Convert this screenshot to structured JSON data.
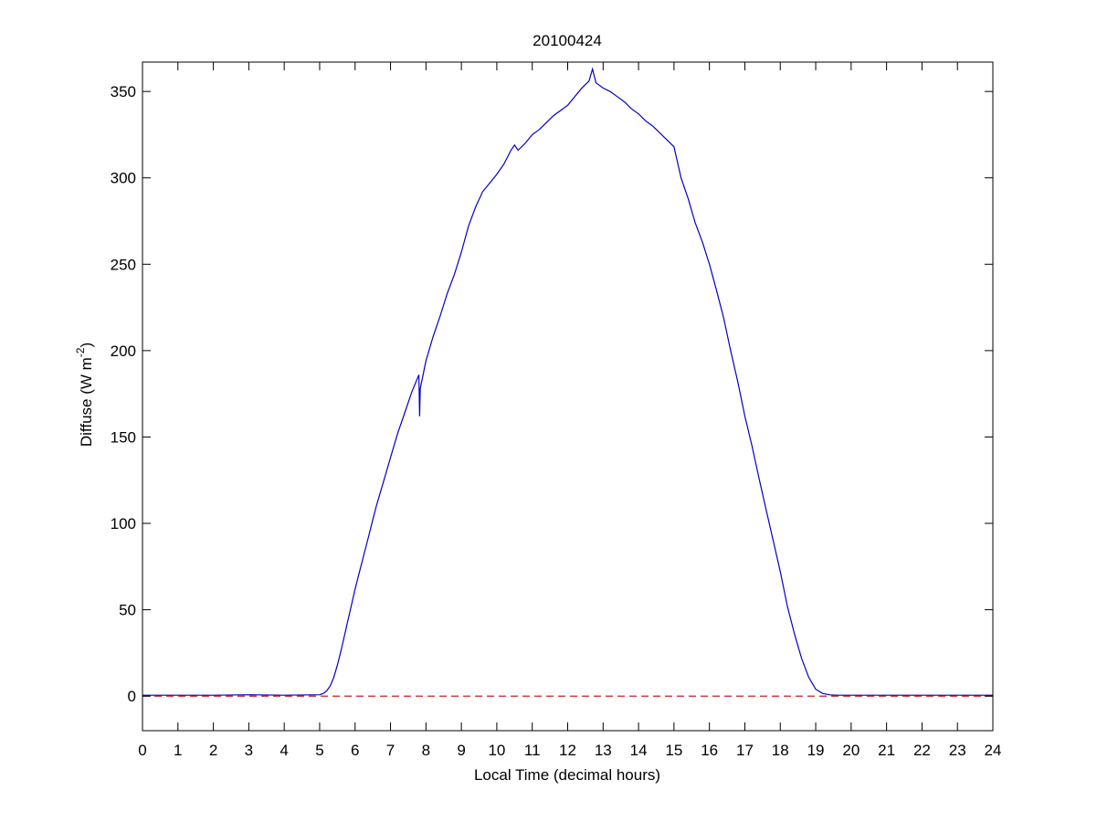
{
  "chart_data": {
    "type": "line",
    "title": "20100424",
    "xlabel": "Local Time (decimal hours)",
    "ylabel": {
      "main": "Diffuse (W m",
      "superscript": "-2",
      "close": ")"
    },
    "xlim": [
      0,
      24
    ],
    "ylim": [
      -20,
      367
    ],
    "xticks": [
      0,
      1,
      2,
      3,
      4,
      5,
      6,
      7,
      8,
      9,
      10,
      11,
      12,
      13,
      14,
      15,
      16,
      17,
      18,
      19,
      20,
      21,
      22,
      23,
      24
    ],
    "yticks": [
      0,
      50,
      100,
      150,
      200,
      250,
      300,
      350
    ],
    "grid": false,
    "legend": "none",
    "series": [
      {
        "color": "#0000cc",
        "style": "solid",
        "x": [
          0,
          1,
          2,
          3,
          4,
          5,
          5.1,
          5.2,
          5.3,
          5.4,
          5.5,
          5.6,
          5.7,
          5.8,
          5.9,
          6.0,
          6.1,
          6.2,
          6.3,
          6.4,
          6.5,
          6.6,
          6.8,
          7.0,
          7.2,
          7.4,
          7.6,
          7.8,
          7.82,
          7.84,
          8.0,
          8.2,
          8.4,
          8.6,
          8.8,
          9.0,
          9.2,
          9.4,
          9.6,
          9.8,
          10.0,
          10.2,
          10.4,
          10.5,
          10.6,
          10.8,
          11.0,
          11.2,
          11.4,
          11.6,
          11.8,
          12.0,
          12.2,
          12.4,
          12.6,
          12.7,
          12.8,
          13.0,
          13.2,
          13.4,
          13.6,
          13.8,
          14.0,
          14.2,
          14.4,
          14.6,
          14.8,
          15.0,
          15.2,
          15.4,
          15.6,
          15.8,
          16.0,
          16.2,
          16.4,
          16.6,
          16.8,
          17.0,
          17.2,
          17.4,
          17.6,
          17.8,
          18.0,
          18.2,
          18.4,
          18.6,
          18.8,
          19.0,
          19.2,
          19.4,
          19.6,
          20,
          21,
          22,
          23,
          24
        ],
        "y": [
          0.5,
          0.5,
          0.5,
          0.8,
          0.5,
          0.8,
          1.5,
          3,
          6,
          11,
          18,
          26,
          35,
          44,
          53,
          62,
          70,
          78,
          86,
          94,
          102,
          110,
          124,
          138,
          152,
          164,
          176,
          186,
          162,
          178,
          194,
          208,
          220,
          233,
          244,
          257,
          272,
          283,
          292,
          297,
          302,
          308,
          316,
          319,
          316,
          320,
          325,
          328,
          332,
          336,
          339,
          342,
          347,
          352,
          356,
          363,
          355,
          352,
          350,
          347,
          344,
          340,
          337,
          333,
          330,
          326,
          322,
          318,
          300,
          288,
          274,
          263,
          250,
          235,
          219,
          200,
          182,
          162,
          145,
          126,
          108,
          90,
          72,
          52,
          36,
          22,
          11,
          4,
          1.5,
          0.7,
          0.5,
          0.5,
          0.5,
          0.5,
          0.5,
          0.5
        ]
      },
      {
        "color": "#cc0000",
        "style": "dashed",
        "x": [
          0,
          24
        ],
        "y": [
          0,
          0
        ]
      }
    ]
  }
}
